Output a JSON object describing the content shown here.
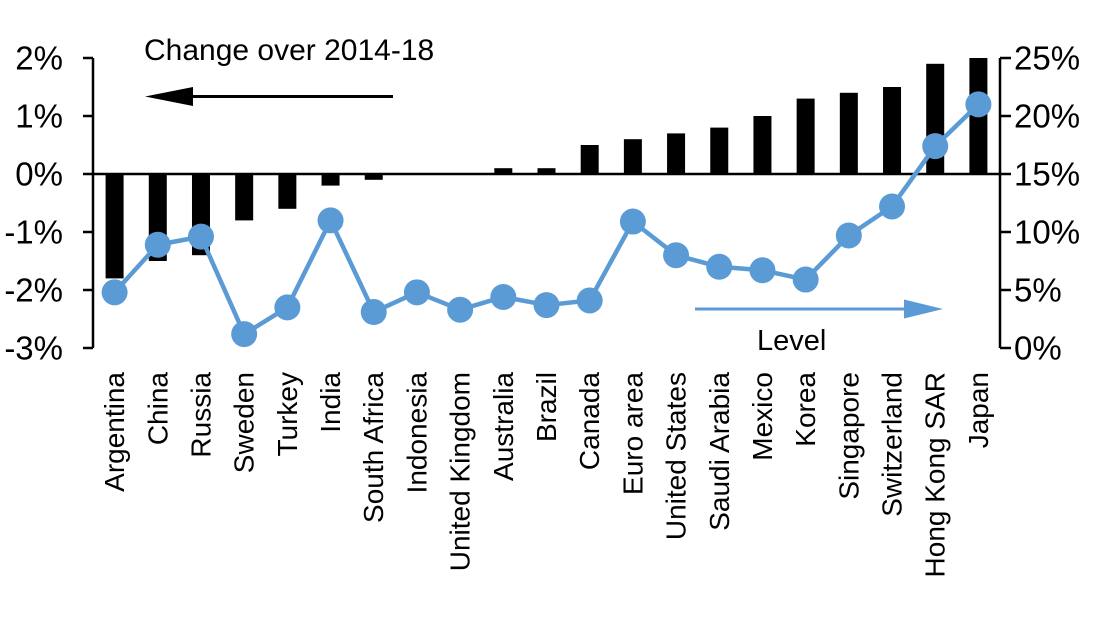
{
  "chart_data": {
    "type": "dual-axis-combo",
    "categories": [
      "Argentina",
      "China",
      "Russia",
      "Sweden",
      "Turkey",
      "India",
      "South Africa",
      "Indonesia",
      "United Kingdom",
      "Australia",
      "Brazil",
      "Canada",
      "Euro area",
      "United States",
      "Saudi Arabia",
      "Mexico",
      "Korea",
      "Singapore",
      "Switzerland",
      "Hong Kong SAR",
      "Japan"
    ],
    "series": [
      {
        "name": "Change over 2014-18",
        "type": "bar",
        "axis": "left",
        "color": "#000000",
        "values": [
          -1.8,
          -1.5,
          -1.4,
          -0.8,
          -0.6,
          -0.2,
          -0.1,
          0,
          0,
          0.1,
          0.1,
          0.5,
          0.6,
          0.7,
          0.8,
          1.0,
          1.3,
          1.4,
          1.5,
          1.9,
          2.0
        ]
      },
      {
        "name": "Level",
        "type": "line",
        "axis": "right",
        "color": "#5B9BD5",
        "values": [
          4.8,
          8.9,
          9.6,
          1.2,
          3.5,
          11.0,
          3.1,
          4.8,
          3.3,
          4.4,
          3.7,
          4.1,
          10.9,
          8.0,
          7.0,
          6.7,
          5.9,
          9.7,
          12.2,
          17.4,
          21.0
        ]
      }
    ],
    "left_axis": {
      "tick_labels": [
        "2%",
        "1%",
        "0%",
        "-1%",
        "-2%",
        "-3%"
      ],
      "min": -3,
      "max": 2
    },
    "right_axis": {
      "tick_labels": [
        "25%",
        "20%",
        "15%",
        "10%",
        "5%",
        "0%"
      ],
      "min": 0,
      "max": 25
    },
    "annotations": {
      "bar_label": "Change over 2014-18",
      "line_label": "Level"
    },
    "layout": {
      "legend": "none",
      "grid": "off",
      "category_label_rotation": -90
    }
  },
  "colors": {
    "bar": "#000000",
    "line": "#5B9BD5",
    "background": "#FFFFFF"
  }
}
